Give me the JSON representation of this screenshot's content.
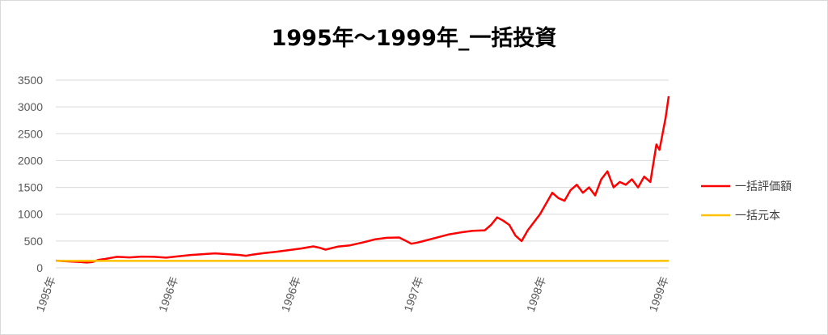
{
  "chart_data": {
    "type": "line",
    "title": "1995年～1999年_一括投資",
    "xlabel": "",
    "ylabel": "",
    "ylim": [
      0,
      3500
    ],
    "yticks": [
      0,
      500,
      1000,
      1500,
      2000,
      2500,
      3000,
      3500
    ],
    "grid": true,
    "legend_position": "right",
    "x_tick_labels": [
      "1995年",
      "1996年",
      "1996年",
      "1997年",
      "1998年",
      "1999年"
    ],
    "x_tick_positions": [
      0,
      0.2,
      0.4,
      0.6,
      0.8,
      1.0
    ],
    "series": [
      {
        "name": "一括評価額",
        "color": "#ff0000",
        "x": [
          0,
          0.02,
          0.04,
          0.05,
          0.06,
          0.07,
          0.08,
          0.09,
          0.1,
          0.12,
          0.14,
          0.16,
          0.18,
          0.2,
          0.22,
          0.24,
          0.26,
          0.28,
          0.3,
          0.31,
          0.32,
          0.34,
          0.36,
          0.38,
          0.4,
          0.42,
          0.43,
          0.44,
          0.46,
          0.48,
          0.5,
          0.52,
          0.54,
          0.56,
          0.57,
          0.58,
          0.59,
          0.6,
          0.62,
          0.64,
          0.66,
          0.68,
          0.7,
          0.71,
          0.72,
          0.73,
          0.74,
          0.75,
          0.76,
          0.77,
          0.78,
          0.79,
          0.8,
          0.81,
          0.82,
          0.83,
          0.84,
          0.85,
          0.86,
          0.87,
          0.88,
          0.89,
          0.9,
          0.91,
          0.92,
          0.93,
          0.94,
          0.95,
          0.96,
          0.97,
          0.98,
          0.985,
          0.99,
          0.995,
          1.0
        ],
        "values": [
          135,
          120,
          110,
          100,
          110,
          150,
          165,
          185,
          205,
          195,
          210,
          205,
          190,
          215,
          240,
          255,
          270,
          255,
          240,
          225,
          245,
          275,
          300,
          330,
          360,
          400,
          375,
          340,
          395,
          420,
          470,
          530,
          560,
          565,
          510,
          450,
          470,
          500,
          560,
          620,
          660,
          690,
          700,
          800,
          940,
          880,
          800,
          600,
          500,
          700,
          850,
          1000,
          1200,
          1400,
          1300,
          1250,
          1450,
          1550,
          1400,
          1500,
          1350,
          1650,
          1800,
          1500,
          1600,
          1550,
          1650,
          1500,
          1700,
          1600,
          2300,
          2200,
          2500,
          2800,
          3200
        ]
      },
      {
        "name": "一括元本",
        "color": "#ffc000",
        "x": [
          0,
          1.0
        ],
        "values": [
          130,
          130
        ]
      }
    ]
  }
}
